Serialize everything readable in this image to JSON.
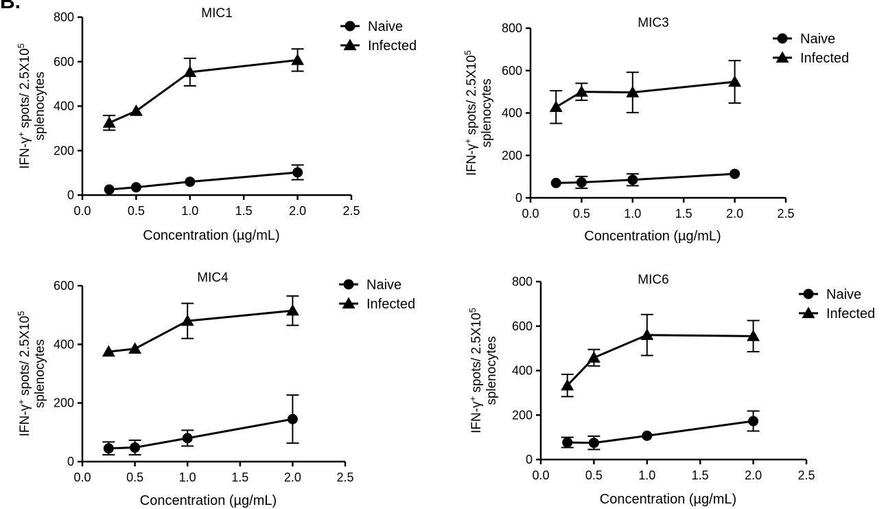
{
  "figure": {
    "panel_letter": "B."
  },
  "chart_data": [
    {
      "type": "line",
      "title": "MIC1",
      "xlabel": "Concentration (µg/mL)",
      "ylabel_line1": "IFN-γ+ spots/ 2.5X105",
      "ylabel_line2": "splenocytes",
      "xlim": [
        0,
        2.5
      ],
      "ylim": [
        0,
        800
      ],
      "xticks": [
        "0.0",
        "0.5",
        "1.0",
        "1.5",
        "2.0",
        "2.5"
      ],
      "yticks": [
        "0",
        "200",
        "400",
        "600",
        "800"
      ],
      "legend": [
        "Naive",
        "Infected"
      ],
      "series": [
        {
          "name": "Naive",
          "marker": "circle",
          "x": [
            0.25,
            0.5,
            1.0,
            2.0
          ],
          "y": [
            25,
            35,
            60,
            102
          ],
          "err": [
            0,
            0,
            0,
            33
          ]
        },
        {
          "name": "Infected",
          "marker": "triangle",
          "x": [
            0.25,
            0.5,
            1.0,
            2.0
          ],
          "y": [
            325,
            378,
            553,
            607
          ],
          "err": [
            33,
            0,
            62,
            50
          ]
        }
      ]
    },
    {
      "type": "line",
      "title": "MIC3",
      "xlabel": "Concentration (µg/mL)",
      "ylabel_line1": "IFN-γ+ spots/ 2.5X105",
      "ylabel_line2": "splenocytes",
      "xlim": [
        0,
        2.5
      ],
      "ylim": [
        0,
        800
      ],
      "xticks": [
        "0.0",
        "0.5",
        "1.0",
        "1.5",
        "2.0",
        "2.5"
      ],
      "yticks": [
        "0",
        "200",
        "400",
        "600",
        "800"
      ],
      "legend": [
        "Naive",
        "Infected"
      ],
      "series": [
        {
          "name": "Naive",
          "marker": "circle",
          "x": [
            0.25,
            0.5,
            1.0,
            2.0
          ],
          "y": [
            70,
            73,
            85,
            113
          ],
          "err": [
            0,
            28,
            28,
            0
          ]
        },
        {
          "name": "Infected",
          "marker": "triangle",
          "x": [
            0.25,
            0.5,
            1.0,
            2.0
          ],
          "y": [
            428,
            500,
            497,
            547
          ],
          "err": [
            77,
            40,
            95,
            100
          ]
        }
      ]
    },
    {
      "type": "line",
      "title": "MIC4",
      "xlabel": "Concentration (µg/mL)",
      "ylabel_line1": "IFN-γ+ spots/ 2.5X105",
      "ylabel_line2": "splenocytes",
      "xlim": [
        0,
        2.5
      ],
      "ylim": [
        0,
        600
      ],
      "xticks": [
        "0.0",
        "0.5",
        "1.0",
        "1.5",
        "2.0",
        "2.5"
      ],
      "yticks": [
        "0",
        "200",
        "400",
        "600"
      ],
      "legend": [
        "Naive",
        "Infected"
      ],
      "series": [
        {
          "name": "Naive",
          "marker": "circle",
          "x": [
            0.25,
            0.5,
            1.0,
            2.0
          ],
          "y": [
            45,
            48,
            80,
            145
          ],
          "err": [
            22,
            25,
            27,
            82
          ]
        },
        {
          "name": "Infected",
          "marker": "triangle",
          "x": [
            0.25,
            0.5,
            1.0,
            2.0
          ],
          "y": [
            375,
            385,
            480,
            515
          ],
          "err": [
            0,
            0,
            60,
            50
          ]
        }
      ]
    },
    {
      "type": "line",
      "title": "MIC6",
      "xlabel": "Concentration (µg/mL)",
      "ylabel_line1": "IFN-γ+ spots/ 2.5X105",
      "ylabel_line2": "splenocytes",
      "xlim": [
        0,
        2.5
      ],
      "ylim": [
        0,
        800
      ],
      "xticks": [
        "0.0",
        "0.5",
        "1.0",
        "1.5",
        "2.0",
        "2.5"
      ],
      "yticks": [
        "0",
        "200",
        "400",
        "600",
        "800"
      ],
      "legend": [
        "Naive",
        "Infected"
      ],
      "series": [
        {
          "name": "Naive",
          "marker": "circle",
          "x": [
            0.25,
            0.5,
            1.0,
            2.0
          ],
          "y": [
            77,
            75,
            107,
            173
          ],
          "err": [
            23,
            30,
            0,
            45
          ]
        },
        {
          "name": "Infected",
          "marker": "triangle",
          "x": [
            0.25,
            0.5,
            1.0,
            2.0
          ],
          "y": [
            333,
            458,
            560,
            555
          ],
          "err": [
            50,
            37,
            92,
            70
          ]
        }
      ]
    }
  ]
}
